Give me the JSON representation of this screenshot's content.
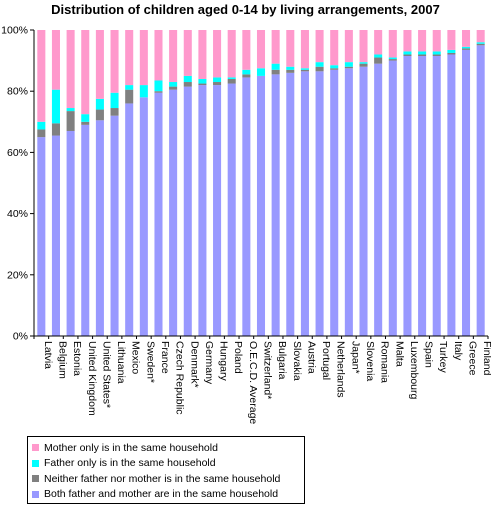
{
  "chart_data": {
    "type": "bar",
    "stacked": true,
    "percent": true,
    "title": "Distribution of children aged 0-14 by living arrangements, 2007",
    "xlabel": "",
    "ylabel": "",
    "ylim": [
      0,
      100
    ],
    "y_ticks": [
      "0%",
      "20%",
      "40%",
      "60%",
      "80%",
      "100%"
    ],
    "grid": false,
    "legend_position": "bottom-left",
    "categories": [
      "Latvia",
      "Belgium",
      "Estonia",
      "United Kingdom",
      "United States*",
      "Lithuania",
      "Mexico",
      "Sweden*",
      "France",
      "Czech Republic",
      "Denmark*",
      "Germany",
      "Hungary",
      "Poland",
      "O.E.C.D. Average",
      "Switzerland*",
      "Bulgaria",
      "Slovakia",
      "Austria",
      "Portugal",
      "Netherlands",
      "Japan*",
      "Slovenia",
      "Romania",
      "Malta",
      "Luxembourg",
      "Spain",
      "Turkey",
      "Italy",
      "Greece",
      "Finland"
    ],
    "series": [
      {
        "name": "Both father and mother are in the same household",
        "color": "#9999ff",
        "values": [
          65,
          65.5,
          67,
          69,
          70.5,
          72,
          76,
          78,
          79.5,
          80.5,
          81.5,
          82,
          82,
          82.5,
          84.5,
          85,
          85.5,
          86,
          86.5,
          86.5,
          87,
          87.5,
          88,
          89,
          90,
          91.5,
          91.5,
          91.5,
          92,
          93.5,
          95
        ]
      },
      {
        "name": "Neither father nor mother is in the same household",
        "color": "#808080",
        "values": [
          2.5,
          4,
          6.5,
          1,
          3.5,
          2.5,
          4.5,
          0,
          0.5,
          1,
          1.5,
          0.5,
          1,
          1.5,
          1,
          0,
          1.5,
          1,
          0.5,
          1.5,
          0.5,
          0.5,
          1,
          2,
          0.5,
          0.5,
          0.5,
          0.5,
          0.5,
          0.5,
          0.5
        ]
      },
      {
        "name": "Father only is in the same household",
        "color": "#00ffff",
        "values": [
          2.5,
          11,
          1,
          2.5,
          3.5,
          5,
          1.5,
          4,
          3.5,
          1.5,
          2,
          1.5,
          1.5,
          0.5,
          1.5,
          2.5,
          2,
          1,
          0.5,
          1.5,
          1,
          1.5,
          0.5,
          1,
          0.5,
          1,
          1,
          1,
          1,
          0.5,
          0.5
        ]
      },
      {
        "name": "Mother only is in the same household",
        "color": "#ff99cc",
        "values": [
          30,
          19.5,
          25.5,
          27.5,
          22.5,
          20.5,
          18,
          18,
          16.5,
          17,
          15,
          16,
          15.5,
          15.5,
          13,
          12.5,
          11,
          12,
          12.5,
          10.5,
          11.5,
          10.5,
          10.5,
          8,
          9,
          7,
          7,
          7,
          6.5,
          5.5,
          4
        ]
      }
    ],
    "legend_order": [
      "Mother only is in the same household",
      "Father only is in the same household",
      "Neither father nor mother is in the same household",
      "Both father and mother are in the same household"
    ]
  }
}
